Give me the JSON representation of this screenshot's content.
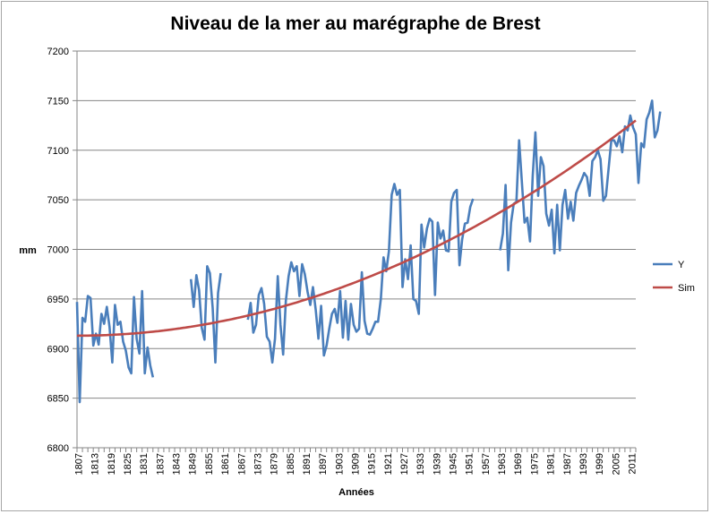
{
  "chart_data": {
    "type": "line",
    "title": "Niveau de la mer au marégraphe de Brest",
    "xlabel": "Années",
    "ylabel": "mm",
    "ylim": [
      6800,
      7200
    ],
    "y_ticks": [
      "7200",
      "7150",
      "7100",
      "7050",
      "7000",
      "6950",
      "6900",
      "6850",
      "6800"
    ],
    "x_tick_labels": [
      "1807",
      "1813",
      "1819",
      "1825",
      "1831",
      "1837",
      "1843",
      "1849",
      "1855",
      "1861",
      "1867",
      "1873",
      "1879",
      "1885",
      "1891",
      "1897",
      "1903",
      "1909",
      "1915",
      "1921",
      "1927",
      "1933",
      "1939",
      "1945",
      "1951",
      "1957",
      "1963",
      "1969",
      "1975",
      "1981",
      "1987",
      "1993",
      "1999",
      "2005",
      "2011"
    ],
    "grid": "horizontal",
    "legend_position": "right",
    "x_start": 1807,
    "x_end": 2013,
    "series": [
      {
        "name": "Y",
        "color": "#4a7ebb",
        "values": [
          6947,
          6846,
          6931,
          6927,
          6953,
          6951,
          6903,
          6915,
          6904,
          6935,
          6925,
          6942,
          6922,
          6886,
          6944,
          6924,
          6927,
          6907,
          6898,
          6881,
          6875,
          6952,
          6910,
          6895,
          6958,
          6875,
          6901,
          6883,
          6871,
          null,
          null,
          null,
          null,
          null,
          null,
          null,
          null,
          null,
          null,
          null,
          null,
          null,
          6970,
          6942,
          6974,
          6959,
          6921,
          6909,
          6983,
          6976,
          6941,
          6886,
          6956,
          6976,
          null,
          null,
          null,
          null,
          null,
          null,
          null,
          null,
          null,
          6929,
          6946,
          6916,
          6924,
          6954,
          6961,
          6945,
          6912,
          6907,
          6886,
          6910,
          6973,
          6924,
          6894,
          6948,
          6973,
          6987,
          6978,
          6983,
          6953,
          6985,
          6975,
          6957,
          6944,
          6962,
          6939,
          6910,
          6943,
          6893,
          6903,
          6920,
          6935,
          6940,
          6926,
          6958,
          6911,
          6948,
          6909,
          6945,
          6924,
          6917,
          6920,
          6977,
          6928,
          6915,
          6914,
          6920,
          6927,
          6927,
          6950,
          6992,
          6978,
          6998,
          7055,
          7066,
          7055,
          7060,
          6962,
          6990,
          6970,
          7004,
          6950,
          6948,
          6935,
          7025,
          7002,
          7021,
          7031,
          7028,
          6954,
          7027,
          7011,
          7019,
          6999,
          6998,
          7048,
          7057,
          7060,
          6984,
          7010,
          7026,
          7027,
          7043,
          7051,
          null,
          null,
          null,
          null,
          null,
          null,
          null,
          null,
          null,
          6999,
          7016,
          7065,
          6979,
          7027,
          7046,
          7048,
          7110,
          7068,
          7027,
          7032,
          7008,
          7074,
          7118,
          7054,
          7093,
          7084,
          7036,
          7024,
          7040,
          6996,
          7045,
          6999,
          7045,
          7060,
          7031,
          7048,
          7029,
          7057,
          7064,
          7070,
          7077,
          7073,
          7054,
          7089,
          7093,
          7100,
          7091,
          7049,
          7054,
          7082,
          7110,
          7110,
          7104,
          7114,
          7098,
          7124,
          7120,
          7135,
          7123,
          7116,
          7067,
          7107,
          7103,
          7131,
          7138,
          7150,
          7113,
          7120,
          7139
        ]
      },
      {
        "name": "Sim",
        "color": "#be4b48",
        "values": "curve"
      }
    ]
  }
}
